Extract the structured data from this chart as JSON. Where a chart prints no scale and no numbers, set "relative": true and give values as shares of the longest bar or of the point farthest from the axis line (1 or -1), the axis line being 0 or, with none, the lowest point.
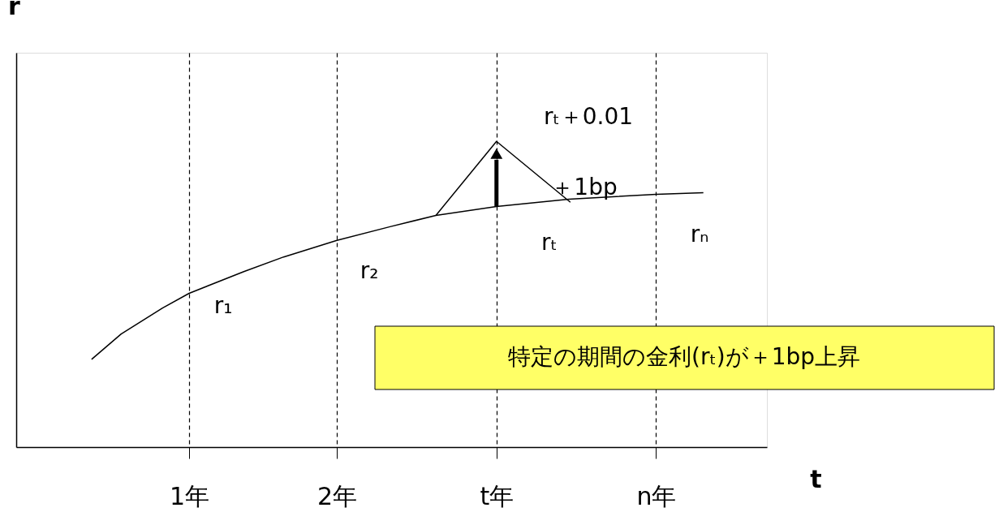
{
  "chart_data": {
    "type": "line",
    "relative": true,
    "xlabel": "t",
    "ylabel": "r",
    "xlim": [
      -0.17,
      4.91
    ],
    "xticks": [
      {
        "value": 1,
        "label": "1年"
      },
      {
        "value": 2,
        "label": "2年"
      },
      {
        "value": 3.08,
        "label": "t年"
      },
      {
        "value": 4.16,
        "label": "n年"
      }
    ],
    "series": [
      {
        "color": "#000000",
        "x": [
          0.34,
          0.54,
          0.82,
          1.0,
          1.37,
          1.64,
          2.0,
          2.36,
          2.67,
          3.08,
          3.57,
          4.16,
          4.48
        ],
        "values": [
          0.287,
          0.37,
          0.455,
          0.503,
          0.574,
          0.622,
          0.676,
          0.721,
          0.758,
          0.787,
          0.811,
          0.827,
          0.832
        ]
      },
      {
        "color": "#000000",
        "x": [
          2.67,
          3.08,
          3.58
        ],
        "values": [
          0.758,
          1.0,
          0.801
        ]
      }
    ],
    "annotations": [
      "r₁",
      "r₂",
      "rₜ",
      "rₙ",
      "rₜ＋0.01",
      "＋1bp",
      "特定の期間の金利(rₜ)が＋1bp上昇"
    ],
    "line_style": "solid",
    "marker": "none",
    "grid": "x"
  }
}
